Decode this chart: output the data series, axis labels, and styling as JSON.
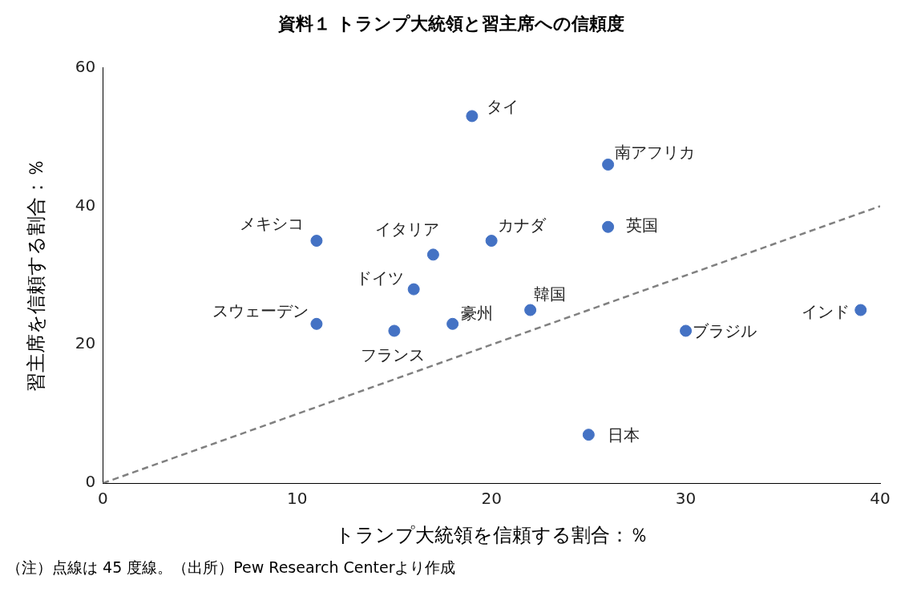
{
  "chart_data": {
    "type": "scatter",
    "title": "資料１ トランプ大統領と習主席への信頼度",
    "xlabel": "トランプ大統領を信頼する割合：％",
    "ylabel": "習主席を信頼する割合：％",
    "series": [
      {
        "color": "#4472c4",
        "marker": "circle",
        "x": [
          19,
          26,
          26,
          11,
          17,
          20,
          16,
          22,
          11,
          18,
          15,
          30,
          39,
          25
        ],
        "values": [
          53,
          46,
          37,
          35,
          33,
          35,
          28,
          25,
          23,
          23,
          22,
          22,
          25,
          7
        ]
      },
      {
        "type": "line",
        "color": "#808080",
        "marker": "none",
        "line_style": "dashed",
        "x": [
          0,
          40
        ],
        "values": [
          0,
          40
        ]
      }
    ],
    "xlim": [
      0,
      40
    ],
    "xticks": [
      0,
      10,
      20,
      30,
      40
    ],
    "ylim": [
      0,
      60
    ],
    "yticks": [
      0,
      20,
      40,
      60
    ],
    "grid": false,
    "legend": false,
    "annotations": [
      {
        "text": "タイ",
        "x": 19,
        "y": 53
      },
      {
        "text": "南アフリカ",
        "x": 26,
        "y": 46
      },
      {
        "text": "英国",
        "x": 26,
        "y": 37
      },
      {
        "text": "メキシコ",
        "x": 11,
        "y": 35
      },
      {
        "text": "イタリア",
        "x": 17,
        "y": 33
      },
      {
        "text": "カナダ",
        "x": 20,
        "y": 35
      },
      {
        "text": "ドイツ",
        "x": 16,
        "y": 28
      },
      {
        "text": "韓国",
        "x": 22,
        "y": 25
      },
      {
        "text": "スウェーデン",
        "x": 11,
        "y": 23
      },
      {
        "text": "豪州",
        "x": 18,
        "y": 23
      },
      {
        "text": "フランス",
        "x": 15,
        "y": 22
      },
      {
        "text": "ブラジル",
        "x": 30,
        "y": 22
      },
      {
        "text": "インド",
        "x": 39,
        "y": 25
      },
      {
        "text": "日本",
        "x": 25,
        "y": 7
      },
      "（注）点線は 45 度線。（出所）Pew Research Centerより作成"
    ]
  }
}
